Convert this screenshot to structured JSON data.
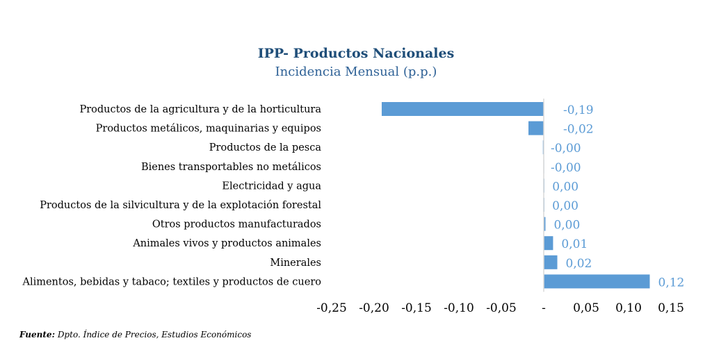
{
  "chart_data": {
    "type": "bar",
    "orientation": "horizontal",
    "title": "IPP- Productos Nacionales",
    "subtitle": "Incidencia Mensual (p.p.)",
    "categories": [
      "Productos de la agricultura y de la horticultura",
      "Productos metálicos, maquinarias y equipos",
      "Productos de la pesca",
      "Bienes transportables no metálicos",
      "Electricidad y agua",
      "Productos de la silvicultura y de la explotación forestal",
      "Otros productos manufacturados",
      "Animales vivos y productos animales",
      "Minerales",
      "Alimentos, bebidas y tabaco; textiles y productos de cuero"
    ],
    "values": [
      -0.191,
      -0.018,
      -0.001,
      -0.0003,
      0.0002,
      0.0001,
      0.002,
      0.011,
      0.016,
      0.125
    ],
    "data_labels": [
      "-0,19",
      "-0,02",
      "-0,00",
      "-0,00",
      "0,00",
      "0,00",
      "0,00",
      "0,01",
      "0,02",
      "0,12"
    ],
    "xticks": [
      -0.25,
      -0.2,
      -0.15,
      -0.1,
      -0.05,
      0,
      0.05,
      0.1,
      0.15
    ],
    "xtick_labels": [
      "-0,25",
      "-0,20",
      "-0,15",
      "-0,10",
      "-0,05",
      "-",
      "0,05",
      "0,10",
      "0,15"
    ],
    "xlim": [
      -0.25,
      0.15
    ],
    "grid": false,
    "bar_color": "#5b9bd5",
    "label_color": "#5b9bd5"
  },
  "source": {
    "label": "Fuente:",
    "text": " Dpto. Índice de Precios, Estudios Económicos"
  }
}
